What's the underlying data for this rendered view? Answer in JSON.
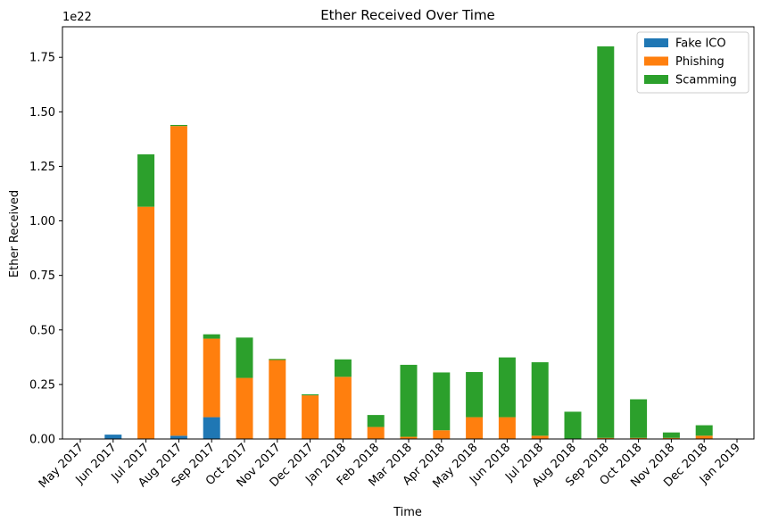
{
  "chart_data": {
    "type": "bar",
    "stacked": true,
    "title": "Ether Received Over Time",
    "xlabel": "Time",
    "ylabel": "Ether Received",
    "y_offset_label": "1e22",
    "ylim": [
      0,
      1.89
    ],
    "yticks": [
      0.0,
      0.25,
      0.5,
      0.75,
      1.0,
      1.25,
      1.5,
      1.75
    ],
    "ytick_labels": [
      "0.00",
      "0.25",
      "0.50",
      "0.75",
      "1.00",
      "1.25",
      "1.50",
      "1.75"
    ],
    "grid": false,
    "legend_position": "top-right",
    "categories": [
      "May 2017",
      "Jun 2017",
      "Jul 2017",
      "Aug 2017",
      "Sep 2017",
      "Oct 2017",
      "Nov 2017",
      "Dec 2017",
      "Jan 2018",
      "Feb 2018",
      "Mar 2018",
      "Apr 2018",
      "May 2018",
      "Jun 2018",
      "Jul 2018",
      "Aug 2018",
      "Sep 2018",
      "Oct 2018",
      "Nov 2018",
      "Dec 2018",
      "Jan 2019"
    ],
    "series": [
      {
        "name": "Fake ICO",
        "color": "#1f77b4",
        "values": [
          0,
          0.02,
          0,
          0.015,
          0.1,
          0,
          0,
          0,
          0,
          0,
          0,
          0,
          0,
          0,
          0,
          0,
          0,
          0,
          0,
          0,
          0
        ]
      },
      {
        "name": "Phishing",
        "color": "#ff7f0e",
        "values": [
          0,
          0,
          1.065,
          1.42,
          0.36,
          0.28,
          0.362,
          0.2,
          0.285,
          0.055,
          0.01,
          0.04,
          0.1,
          0.1,
          0.015,
          0,
          0.005,
          0.005,
          0.005,
          0.015,
          0
        ]
      },
      {
        "name": "Scamming",
        "color": "#2ca02c",
        "values": [
          0,
          0,
          0.24,
          0.005,
          0.02,
          0.185,
          0.005,
          0.005,
          0.08,
          0.055,
          0.33,
          0.265,
          0.207,
          0.274,
          0.337,
          0.125,
          1.795,
          0.177,
          0.025,
          0.048,
          0
        ]
      }
    ]
  }
}
